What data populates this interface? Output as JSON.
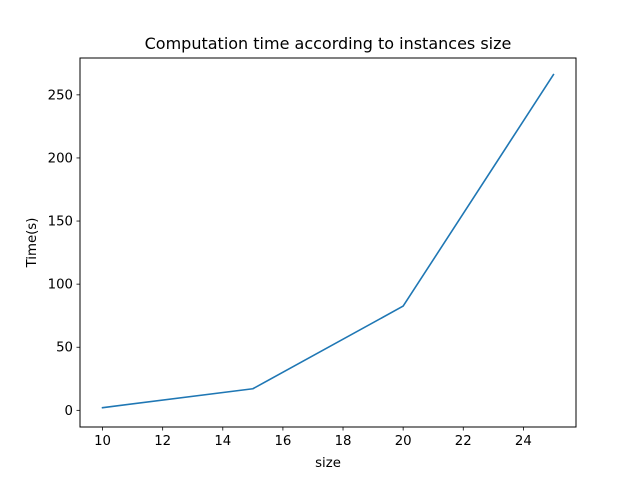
{
  "chart_data": {
    "type": "line",
    "title": "Computation time according to instances size",
    "xlabel": "size",
    "ylabel": "Time(s)",
    "xlim": [
      9.25,
      25.75
    ],
    "ylim": [
      -13.2,
      279.2
    ],
    "xticks": [
      10,
      12,
      14,
      16,
      18,
      20,
      22,
      24
    ],
    "yticks": [
      0,
      50,
      100,
      150,
      200,
      250
    ],
    "grid": false,
    "series": [
      {
        "color": "#1f77b4",
        "points": [
          {
            "x": 10,
            "y": 2.1
          },
          {
            "x": 15,
            "y": 17.1
          },
          {
            "x": 20,
            "y": 82.6
          },
          {
            "x": 25,
            "y": 266.0
          }
        ]
      }
    ]
  }
}
